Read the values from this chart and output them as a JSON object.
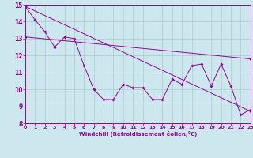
{
  "xlabel": "Windchill (Refroidissement éolien,°C)",
  "bg_color": "#cce8ee",
  "line_color": "#990099",
  "grid_color": "#aacccc",
  "xlim": [
    0,
    23
  ],
  "ylim": [
    8,
    15
  ],
  "yticks": [
    8,
    9,
    10,
    11,
    12,
    13,
    14,
    15
  ],
  "xticks": [
    0,
    1,
    2,
    3,
    4,
    5,
    6,
    7,
    8,
    9,
    10,
    11,
    12,
    13,
    14,
    15,
    16,
    17,
    18,
    19,
    20,
    21,
    22,
    23
  ],
  "series1": [
    [
      0,
      14.9
    ],
    [
      1,
      14.1
    ],
    [
      2,
      13.4
    ],
    [
      3,
      12.5
    ],
    [
      4,
      13.1
    ],
    [
      5,
      13.0
    ],
    [
      6,
      11.4
    ],
    [
      7,
      10.0
    ],
    [
      8,
      9.4
    ],
    [
      9,
      9.4
    ],
    [
      10,
      10.3
    ],
    [
      11,
      10.1
    ],
    [
      12,
      10.1
    ],
    [
      13,
      9.4
    ],
    [
      14,
      9.4
    ],
    [
      15,
      10.6
    ],
    [
      16,
      10.3
    ],
    [
      17,
      11.4
    ],
    [
      18,
      11.5
    ],
    [
      19,
      10.2
    ],
    [
      20,
      11.5
    ],
    [
      21,
      10.2
    ],
    [
      22,
      8.5
    ],
    [
      23,
      8.8
    ]
  ],
  "series2_x": [
    0,
    23
  ],
  "series2_y": [
    14.9,
    8.7
  ],
  "series3_x": [
    0,
    23
  ],
  "series3_y": [
    13.1,
    11.8
  ]
}
